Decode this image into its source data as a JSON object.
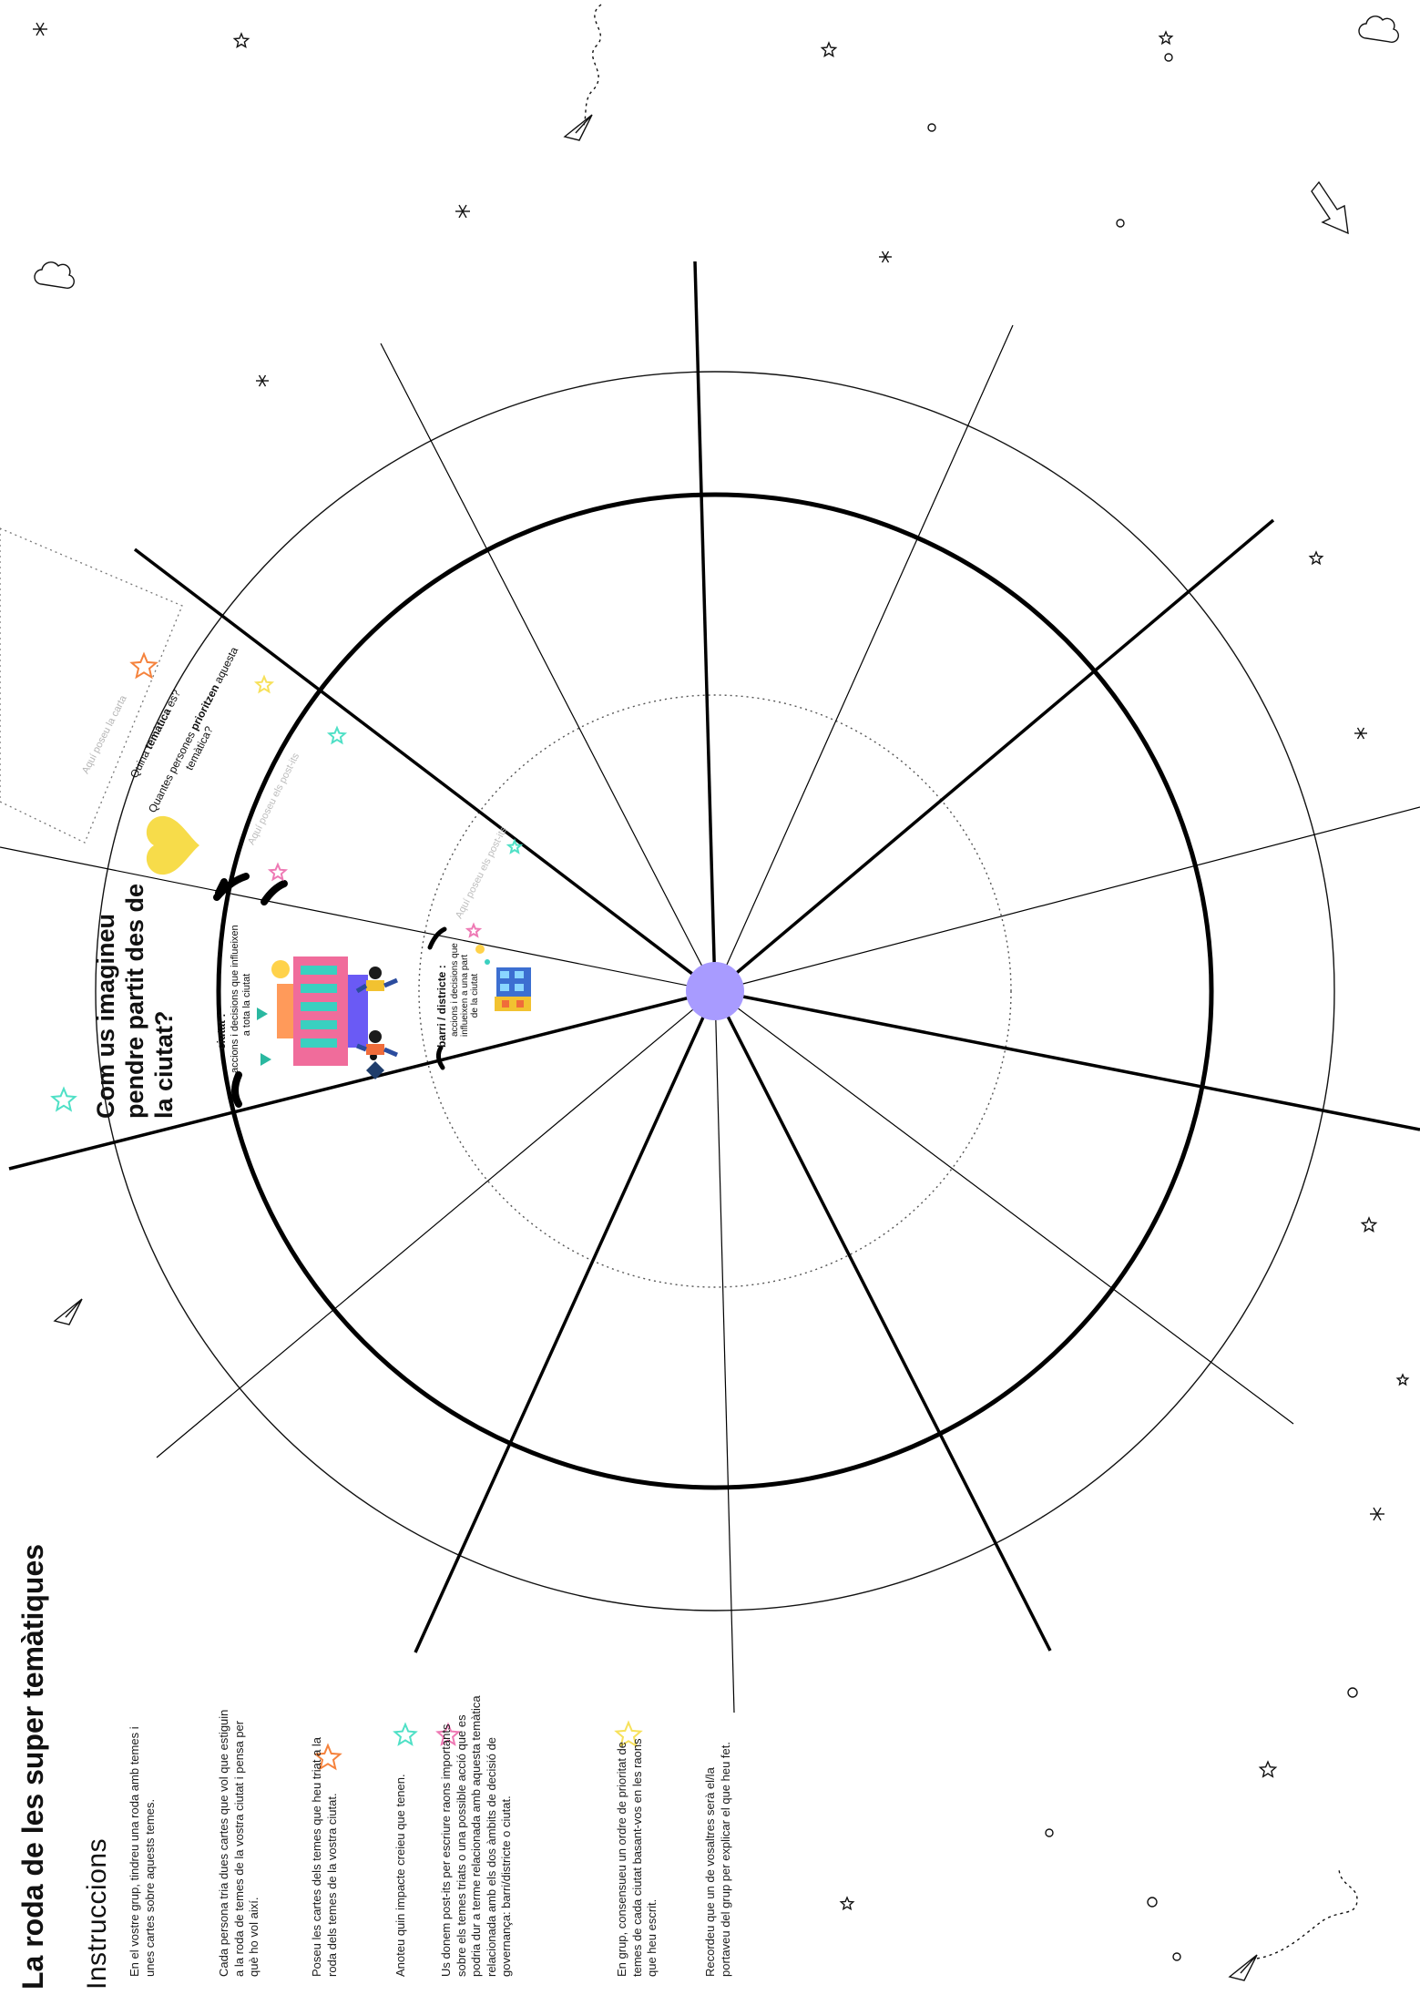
{
  "title": "La roda de les super temàtiques",
  "instructions": {
    "heading": "Instruccions",
    "steps": [
      "En el vostre grup, tindreu una roda amb temes i unes cartes sobre aquests temes.",
      "Cada persona tria dues cartes que vol que estiguin a la roda de temes de la vostra ciutat i pensa per què ho vol així.",
      "Poseu les cartes dels temes que heu triat a la roda dels temes de la vostra ciutat.",
      "Anoteu quin impacte creieu que tenen.",
      "Us donem post-its per escriure raons importants sobre els temes triats o una possible acció que es podria dur a terme relacionada amb aquesta temàtica relacionada amb els dos àmbits de decisió de governança: barri/districte o ciutat.",
      "En grup, consensueu un ordre de prioritat de temes de cada ciutat basant-vos en les raons que heu escrit.",
      "Recordeu que un de vosaltres serà el/la portaveu del grup per explicar el que heu fet."
    ]
  },
  "wheel": {
    "question": "Com us imagineu pendre partit des de la ciutat?",
    "card_slot": {
      "placeholder": "Aquí poseu la carta",
      "q1_pre": "Quina ",
      "q1_bold": "temàtica",
      "q1_post": " és?",
      "q2_pre": "Quantes persones ",
      "q2_bold": "prioritzen",
      "q2_post": " aquesta",
      "q2_line2": "temàtica?"
    },
    "postits_outer": "Aquí poseu els post-its",
    "postits_inner": "Aquí poseu els post-its",
    "city": {
      "label": "ciutat",
      "desc_line1": "accions i decisions que influeixen",
      "desc_line2": "a tota la ciutat"
    },
    "district": {
      "label": "barri / districte",
      "desc_line1": "accions i decisions que",
      "desc_line2": "influeixen a una part",
      "desc_line3": "de la ciutat"
    }
  },
  "colors": {
    "hub": "#a89bff",
    "heart": "#f7dc4a",
    "star_orange": "#f5823c",
    "star_teal": "#4fe0c6",
    "star_pink": "#ee79b4",
    "star_yellow": "#f7e15a"
  }
}
